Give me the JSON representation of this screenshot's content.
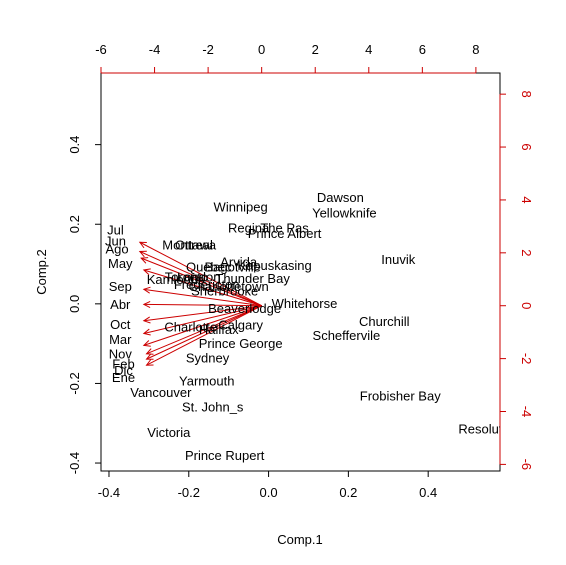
{
  "chart_data": {
    "type": "scatter",
    "subtype": "biplot",
    "xlabel": "Comp.1",
    "ylabel": "Comp.2",
    "xlim": [
      -0.42,
      0.58
    ],
    "ylim": [
      -0.42,
      0.58
    ],
    "x_ticks": [
      "-0.4",
      "-0.2",
      "0.0",
      "0.2",
      "0.4"
    ],
    "x_tick_values": [
      -0.4,
      -0.2,
      0.0,
      0.2,
      0.4
    ],
    "y_ticks": [
      "-0.4",
      "-0.2",
      "0.0",
      "0.2",
      "0.4"
    ],
    "y_tick_values": [
      -0.4,
      -0.2,
      0.0,
      0.2,
      0.4
    ],
    "top_axis": {
      "color": "#cc0000",
      "lim": [
        -6.0,
        8.9
      ],
      "ticks": [
        "-6",
        "-4",
        "-2",
        "0",
        "2",
        "4",
        "6",
        "8"
      ],
      "tick_values": [
        -6,
        -4,
        -2,
        0,
        2,
        4,
        6,
        8
      ]
    },
    "right_axis": {
      "color": "#cc0000",
      "lim": [
        -6.25,
        8.8
      ],
      "ticks": [
        "-6",
        "-4",
        "-2",
        "0",
        "2",
        "4",
        "6",
        "8"
      ],
      "tick_values": [
        -6,
        -4,
        -2,
        0,
        2,
        4,
        6,
        8
      ]
    },
    "point_color": "#000000",
    "arrow_color": "#cc0000",
    "points": [
      {
        "label": "Dawson",
        "x": 0.18,
        "y": 0.268
      },
      {
        "label": "Yellowknife",
        "x": 0.19,
        "y": 0.229
      },
      {
        "label": "Winnipeg",
        "x": -0.07,
        "y": 0.244
      },
      {
        "label": "Regina",
        "x": -0.05,
        "y": 0.192
      },
      {
        "label": "The Pas",
        "x": 0.04,
        "y": 0.192
      },
      {
        "label": "Prince Albert",
        "x": 0.04,
        "y": 0.178
      },
      {
        "label": "Montreal",
        "x": -0.203,
        "y": 0.149
      },
      {
        "label": "Ottawa",
        "x": -0.183,
        "y": 0.149
      },
      {
        "label": "Arvida",
        "x": -0.075,
        "y": 0.106
      },
      {
        "label": "Kapuskasing",
        "x": 0.015,
        "y": 0.098
      },
      {
        "label": "Quebec",
        "x": -0.15,
        "y": 0.094
      },
      {
        "label": "Bagotville",
        "x": -0.09,
        "y": 0.094
      },
      {
        "label": "Inuvik",
        "x": 0.325,
        "y": 0.113
      },
      {
        "label": "Toronto",
        "x": -0.206,
        "y": 0.069
      },
      {
        "label": "London",
        "x": -0.175,
        "y": 0.069
      },
      {
        "label": "Thunder Bay",
        "x": -0.04,
        "y": 0.065
      },
      {
        "label": "Kamloops",
        "x": -0.233,
        "y": 0.062
      },
      {
        "label": "Fredericton",
        "x": -0.155,
        "y": 0.05
      },
      {
        "label": "Charlottetown",
        "x": -0.1,
        "y": 0.045
      },
      {
        "label": "Sherbrooke",
        "x": -0.11,
        "y": 0.033
      },
      {
        "label": "Whitehorse",
        "x": 0.09,
        "y": 0.002
      },
      {
        "label": "Beaverlodge",
        "x": -0.06,
        "y": -0.01
      },
      {
        "label": "Churchill",
        "x": 0.29,
        "y": -0.043
      },
      {
        "label": "Calgary",
        "x": -0.07,
        "y": -0.052
      },
      {
        "label": "Charlotte",
        "x": -0.195,
        "y": -0.057
      },
      {
        "label": "Halifax",
        "x": -0.125,
        "y": -0.063
      },
      {
        "label": "Scheffervile",
        "x": 0.195,
        "y": -0.078
      },
      {
        "label": "Prince George",
        "x": -0.07,
        "y": -0.098
      },
      {
        "label": "Sydney",
        "x": -0.153,
        "y": -0.135
      },
      {
        "label": "Yarmouth",
        "x": -0.155,
        "y": -0.193
      },
      {
        "label": "Vancouver",
        "x": -0.27,
        "y": -0.222
      },
      {
        "label": "St. John_s",
        "x": -0.14,
        "y": -0.258
      },
      {
        "label": "Frobisher Bay",
        "x": 0.33,
        "y": -0.23
      },
      {
        "label": "Victoria",
        "x": -0.25,
        "y": -0.322
      },
      {
        "label": "Resolute",
        "x": 0.54,
        "y": -0.313
      },
      {
        "label": "Prince Rupert",
        "x": -0.11,
        "y": -0.38
      }
    ],
    "arrows": [
      {
        "label": "Jul",
        "x": -4.55,
        "y": 2.4
      },
      {
        "label": "Jun",
        "x": -4.55,
        "y": 2.05
      },
      {
        "label": "Ago",
        "x": -4.5,
        "y": 1.8
      },
      {
        "label": "May",
        "x": -4.4,
        "y": 1.35
      },
      {
        "label": "Sep",
        "x": -4.4,
        "y": 0.62
      },
      {
        "label": "Abr",
        "x": -4.4,
        "y": 0.05
      },
      {
        "label": "Oct",
        "x": -4.4,
        "y": -0.57
      },
      {
        "label": "Mar",
        "x": -4.4,
        "y": -1.05
      },
      {
        "label": "Nov",
        "x": -4.4,
        "y": -1.5
      },
      {
        "label": "Feb",
        "x": -4.3,
        "y": -1.82
      },
      {
        "label": "Dic",
        "x": -4.3,
        "y": -2.02
      },
      {
        "label": "Ene",
        "x": -4.3,
        "y": -2.25
      }
    ]
  }
}
